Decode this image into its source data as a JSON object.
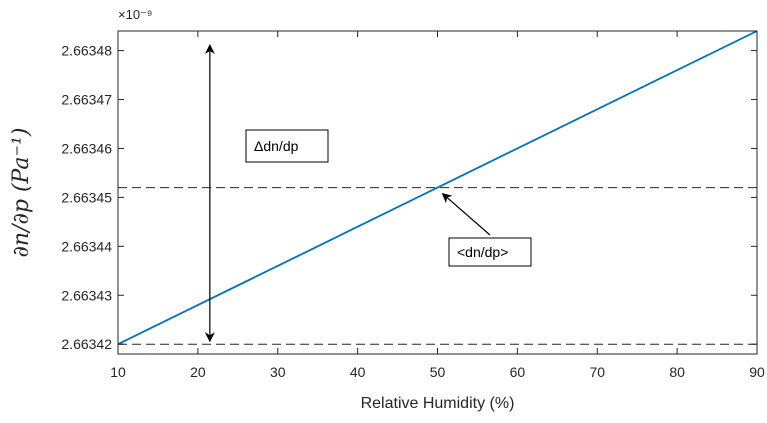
{
  "chart_data": {
    "type": "line",
    "xlabel": "Relative Humidity (%)",
    "ylabel": "∂n/∂p (Pa⁻¹)",
    "xlim": [
      10,
      90
    ],
    "ylim": [
      2.663418,
      2.663484
    ],
    "y_exponent_label": "×10⁻⁹",
    "xticks": [
      10,
      20,
      30,
      40,
      50,
      60,
      70,
      80,
      90
    ],
    "yticks": [
      2.66342,
      2.66343,
      2.66344,
      2.66345,
      2.66346,
      2.66347,
      2.66348
    ],
    "xtick_labels": [
      "10",
      "20",
      "30",
      "40",
      "50",
      "60",
      "70",
      "80",
      "90"
    ],
    "ytick_labels": [
      "2.66342",
      "2.66343",
      "2.66344",
      "2.66345",
      "2.66346",
      "2.66347",
      "2.66348"
    ],
    "series": [
      {
        "x": [
          10,
          90
        ],
        "y": [
          2.66342,
          2.663484
        ],
        "color": "#0072bd"
      }
    ],
    "reference_lines": [
      {
        "y": 2.663484,
        "style": "dashed",
        "color": "#262626"
      },
      {
        "y": 2.663452,
        "style": "dashed",
        "color": "#262626"
      },
      {
        "y": 2.66342,
        "style": "dashed",
        "color": "#262626"
      }
    ],
    "annotations": [
      {
        "text": "Δdn/dp",
        "type": "textbox"
      },
      {
        "text": "<dn/dp>",
        "type": "textbox-arrow",
        "points_to": [
          50.5,
          2.663452
        ]
      }
    ],
    "range_arrow": {
      "x": 21.5,
      "y_from": 2.66342,
      "y_to": 2.663484
    },
    "grid": false,
    "box": true
  }
}
